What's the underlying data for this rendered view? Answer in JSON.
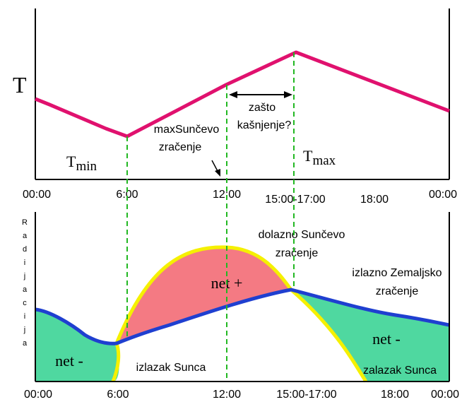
{
  "top_panel": {
    "y_label": "T",
    "tmin_label": {
      "main": "T",
      "sub": "min"
    },
    "tmax_label": {
      "main": "T",
      "sub": "max"
    },
    "max_sun_note": [
      "maxSunčevo",
      "zračenje"
    ],
    "delay_note": [
      "zašto",
      "kašnjenje?"
    ],
    "x_ticks": [
      "00:00",
      "6:00",
      "12:00",
      "15:00-17:00",
      "18:00",
      "00:00"
    ]
  },
  "bottom_panel": {
    "y_label_letters": [
      "R",
      "a",
      "d",
      "i",
      "j",
      "a",
      "c",
      "i",
      "j",
      "a"
    ],
    "incoming_label": [
      "dolazno Sunčevo",
      "zračenje"
    ],
    "outgoing_label": [
      "izlazno Zemaljsko",
      "zračenje"
    ],
    "net_plus": "net +",
    "net_minus_left": "net -",
    "net_minus_right": "net -",
    "sunrise": "izlazak Sunca",
    "sunset": "zalazak Sunca",
    "x_ticks": [
      "00:00",
      "6:00",
      "12:00",
      "15:00-17:00",
      "18:00",
      "00:00"
    ]
  },
  "colors": {
    "temperature_line": "#e0116e",
    "outgoing_line": "#1f3fd0",
    "incoming_line": "#f5f000",
    "net_positive_fill": "#f47a83",
    "net_negative_fill": "#4fd8a0",
    "guide_lines": "#22b822"
  }
}
